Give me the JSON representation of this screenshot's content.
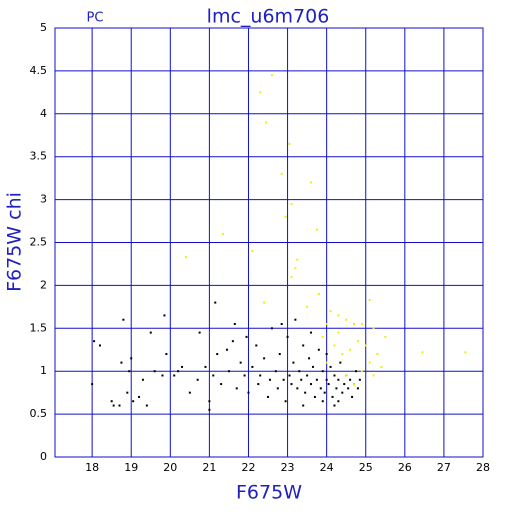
{
  "chart_data": {
    "type": "scatter",
    "title": "lmc_u6m706",
    "corner_label": "PC",
    "x_label": "F675W",
    "y_label": "F675W chi",
    "xlim": [
      17.05,
      28
    ],
    "xticks": [
      18,
      19,
      20,
      21,
      22,
      23,
      24,
      25,
      26,
      27,
      28
    ],
    "ylim": [
      0,
      5
    ],
    "yticks": [
      0,
      0.5,
      1,
      1.5,
      2,
      2.5,
      3,
      3.5,
      4,
      4.5,
      5
    ],
    "grid": true,
    "series": [
      {
        "color": "#000000",
        "x": [
          18.0,
          18.05,
          18.2,
          18.5,
          18.55,
          18.7,
          18.75,
          18.8,
          18.9,
          18.95,
          19.0,
          19.05,
          19.3,
          19.4,
          19.5,
          19.6,
          19.8,
          19.9,
          19.85,
          20.1,
          20.3,
          20.5,
          20.7,
          20.75,
          20.9,
          21.0,
          21.0,
          21.1,
          21.15,
          21.2,
          21.3,
          21.45,
          21.5,
          21.6,
          21.65,
          21.7,
          21.8,
          21.9,
          22.0,
          22.1,
          22.2,
          22.25,
          22.3,
          22.4,
          22.5,
          22.55,
          22.6,
          22.7,
          22.75,
          22.8,
          22.9,
          22.95,
          23.0,
          23.05,
          23.1,
          23.15,
          23.2,
          23.25,
          23.3,
          23.35,
          23.4,
          23.45,
          23.5,
          23.55,
          23.6,
          23.65,
          23.7,
          23.75,
          23.8,
          23.85,
          23.9,
          23.95,
          24.0,
          24.05,
          24.1,
          24.15,
          24.2,
          24.25,
          24.3,
          24.35,
          24.4,
          24.45,
          24.5,
          24.55,
          24.6,
          24.65,
          24.7,
          24.75,
          24.8,
          24.85,
          23.9,
          24.2,
          23.6,
          22.85,
          21.95,
          20.2,
          19.2,
          24.0,
          24.3,
          23.4
        ],
        "values": [
          0.85,
          1.35,
          1.3,
          0.65,
          0.6,
          0.6,
          1.1,
          1.6,
          0.75,
          1.0,
          1.15,
          0.65,
          0.9,
          0.6,
          1.45,
          1.0,
          0.95,
          1.2,
          1.65,
          0.95,
          1.05,
          0.75,
          0.9,
          1.45,
          1.05,
          0.65,
          0.55,
          0.95,
          1.8,
          1.2,
          0.85,
          1.25,
          1.0,
          1.35,
          1.55,
          0.8,
          1.1,
          0.95,
          0.75,
          1.05,
          1.3,
          0.85,
          0.95,
          1.15,
          0.7,
          0.9,
          1.5,
          1.0,
          0.8,
          1.2,
          0.9,
          0.65,
          1.4,
          0.95,
          0.85,
          1.1,
          1.6,
          0.8,
          1.0,
          0.9,
          1.3,
          0.75,
          0.95,
          1.15,
          0.85,
          1.05,
          0.7,
          0.9,
          1.25,
          0.8,
          1.0,
          0.75,
          0.9,
          0.85,
          1.05,
          0.7,
          0.95,
          0.8,
          0.9,
          1.1,
          0.75,
          0.85,
          0.95,
          0.8,
          0.9,
          0.7,
          0.85,
          1.0,
          0.8,
          0.9,
          0.65,
          0.6,
          1.45,
          1.55,
          1.4,
          1.0,
          0.7,
          1.2,
          0.65,
          0.6
        ]
      },
      {
        "color": "#f0f000",
        "x": [
          20.4,
          21.35,
          22.1,
          22.3,
          22.45,
          22.6,
          22.85,
          23.05,
          22.95,
          23.1,
          23.2,
          23.25,
          23.6,
          23.75,
          23.8,
          23.1,
          22.4,
          23.5,
          24.1,
          24.3,
          24.5,
          24.7,
          24.9,
          25.1,
          25.2,
          25.5,
          25.3,
          25.1,
          25.0,
          24.8,
          24.6,
          24.4,
          24.2,
          24.0,
          24.9,
          25.2,
          26.45,
          27.55,
          24.5,
          24.7,
          24.3,
          24.0,
          23.9,
          25.4
        ],
        "values": [
          2.33,
          2.6,
          2.4,
          4.25,
          3.9,
          4.45,
          3.3,
          3.65,
          2.8,
          2.95,
          2.2,
          2.3,
          3.2,
          2.65,
          1.9,
          2.1,
          1.8,
          1.75,
          1.7,
          1.65,
          1.6,
          1.55,
          1.55,
          1.83,
          1.5,
          1.4,
          1.2,
          1.1,
          1.3,
          1.35,
          1.25,
          1.2,
          1.3,
          1.1,
          1.0,
          0.95,
          1.22,
          1.22,
          0.95,
          0.85,
          1.45,
          1.55,
          1.4,
          1.05
        ]
      }
    ]
  }
}
